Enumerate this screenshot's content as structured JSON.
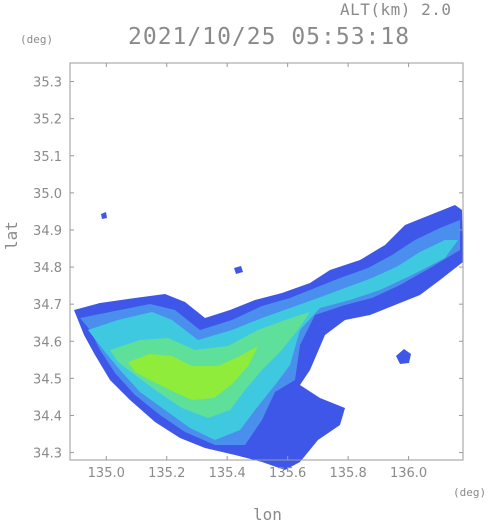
{
  "header": {
    "altitude": "ALT(km) 2.0",
    "timestamp": "2021/10/25 05:53:18"
  },
  "axes": {
    "lat_unit": "(deg)",
    "lon_unit": "(deg)",
    "ylabel": "lat",
    "xlabel": "lon",
    "y_ticks": [
      "35.3",
      "35.2",
      "35.1",
      "35.0",
      "34.9",
      "34.8",
      "34.7",
      "34.6",
      "34.5",
      "34.4",
      "34.3"
    ],
    "x_ticks": [
      "135.0",
      "135.2",
      "135.4",
      "135.6",
      "135.8",
      "136.0"
    ]
  },
  "chart_data": {
    "type": "heatmap",
    "xlabel": "lon",
    "ylabel": "lat",
    "x_unit": "(deg)",
    "y_unit": "(deg)",
    "xlim": [
      134.88,
      136.18
    ],
    "ylim": [
      34.28,
      35.35
    ],
    "ytick_values": [
      35.3,
      35.2,
      35.1,
      35.0,
      34.9,
      34.8,
      34.7,
      34.6,
      34.5,
      34.4,
      34.3
    ],
    "xtick_values": [
      135.0,
      135.2,
      135.4,
      135.6,
      135.8,
      136.0
    ],
    "colors": {
      "low": "#3f57e8",
      "low_mid": "#4a8fee",
      "mid": "#3fc9e0",
      "mid_high": "#5ee09a",
      "high": "#8fec3a",
      "frame": "#9a9a9a"
    }
  }
}
